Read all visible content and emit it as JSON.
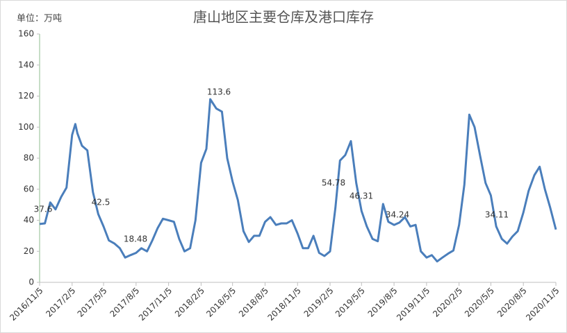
{
  "chart_data": {
    "type": "line",
    "title": "唐山地区主要仓库及港口库存",
    "y_label": "单位：万吨",
    "x": [
      "2016/11/5",
      "2016/11/20",
      "2016/12/5",
      "2016/12/20",
      "2017/1/5",
      "2017/1/20",
      "2017/2/5",
      "2017/2/14",
      "2017/2/20",
      "2017/3/5",
      "2017/3/20",
      "2017/4/5",
      "2017/4/20",
      "2017/5/5",
      "2017/5/20",
      "2017/6/5",
      "2017/6/20",
      "2017/7/5",
      "2017/7/20",
      "2017/8/5",
      "2017/8/20",
      "2017/9/5",
      "2017/9/20",
      "2017/10/5",
      "2017/10/20",
      "2017/11/5",
      "2017/11/20",
      "2017/12/5",
      "2017/12/20",
      "2018/1/5",
      "2018/1/20",
      "2018/2/5",
      "2018/2/20",
      "2018/3/3",
      "2018/3/20",
      "2018/4/5",
      "2018/4/20",
      "2018/5/5",
      "2018/5/20",
      "2018/6/5",
      "2018/6/20",
      "2018/7/5",
      "2018/7/20",
      "2018/8/5",
      "2018/8/20",
      "2018/9/5",
      "2018/9/20",
      "2018/10/5",
      "2018/10/20",
      "2018/11/5",
      "2018/11/20",
      "2018/12/5",
      "2018/12/20",
      "2019/1/5",
      "2019/1/20",
      "2019/2/5",
      "2019/2/20",
      "2019/3/5",
      "2019/3/20",
      "2019/4/5",
      "2019/4/20",
      "2019/5/5",
      "2019/5/20",
      "2019/6/5",
      "2019/6/20",
      "2019/7/5",
      "2019/7/20",
      "2019/8/5",
      "2019/8/20",
      "2019/9/5",
      "2019/9/20",
      "2019/10/5",
      "2019/10/20",
      "2019/11/5",
      "2019/11/20",
      "2019/12/5",
      "2019/12/20",
      "2020/1/5",
      "2020/1/20",
      "2020/2/5",
      "2020/2/20",
      "2020/3/5",
      "2020/3/20",
      "2020/4/5",
      "2020/4/20",
      "2020/5/5",
      "2020/5/20",
      "2020/6/5",
      "2020/6/20",
      "2020/7/5",
      "2020/7/20",
      "2020/8/5",
      "2020/8/20",
      "2020/9/5",
      "2020/9/20",
      "2020/10/5",
      "2020/10/20",
      "2020/11/5"
    ],
    "series": [
      {
        "name": "库存",
        "color": "#4a7ebb",
        "values": [
          37.6,
          38,
          51.5,
          47,
          55,
          61,
          95,
          102,
          96,
          88,
          85,
          58,
          44,
          36,
          27,
          25,
          22,
          16,
          17.5,
          19,
          22,
          20,
          27,
          35,
          41,
          40,
          39,
          28,
          20,
          22,
          40,
          77,
          86,
          118,
          112,
          110,
          80,
          65,
          53,
          33,
          26,
          30,
          30,
          39,
          42,
          37,
          38,
          38,
          40,
          31.5,
          22,
          22,
          30,
          19,
          17,
          20,
          48,
          78.5,
          82,
          91,
          64,
          46,
          36,
          28,
          26.5,
          50.5,
          39,
          37,
          38.5,
          42,
          36,
          37,
          20,
          16,
          17.5,
          13.5,
          16,
          18.5,
          20.5,
          37,
          63,
          108,
          100,
          81,
          64,
          56,
          36,
          28,
          25,
          29.5,
          33,
          45,
          59,
          69,
          74.5,
          60,
          48,
          34
        ]
      }
    ],
    "annotations": [
      "37.6",
      "42.5",
      "18.48",
      "113.6",
      "54.78",
      "46.31",
      "34.24",
      "34.11"
    ],
    "xlim": [
      "2016/11/5",
      "2020/11/5"
    ],
    "xticks": [
      "2016/11/5",
      "2017/2/5",
      "2017/5/5",
      "2017/8/5",
      "2017/11/5",
      "2018/2/5",
      "2018/5/5",
      "2018/8/5",
      "2018/11/5",
      "2019/2/5",
      "2019/5/5",
      "2019/8/5",
      "2019/11/5",
      "2020/2/5",
      "2020/5/5",
      "2020/8/5",
      "2020/11/5"
    ],
    "ylim": [
      0,
      160
    ],
    "yticks": [
      0,
      20,
      40,
      60,
      80,
      100,
      120,
      140,
      160
    ],
    "grid": false
  }
}
